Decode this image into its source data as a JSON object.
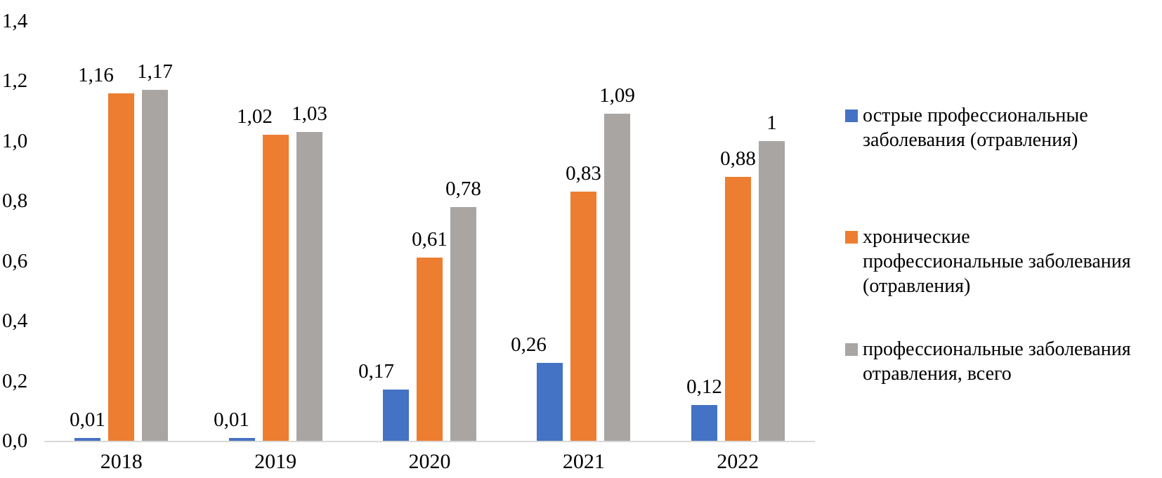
{
  "chart_data": {
    "type": "bar",
    "title": "",
    "xlabel": "",
    "ylabel": "",
    "categories": [
      "2018",
      "2019",
      "2020",
      "2021",
      "2022"
    ],
    "series": [
      {
        "name": "острые профессиональные заболевания (отравления)",
        "legend_lines": [
          "острые профессиональные",
          "заболевания (отравления)"
        ],
        "color": "#4472C4",
        "values": [
          0.01,
          0.01,
          0.17,
          0.26,
          0.12
        ],
        "value_labels": [
          "0,01",
          "0,01",
          "0,17",
          "0,26",
          "0,12"
        ]
      },
      {
        "name": "хронические профессиональные заболевания (отравления)",
        "legend_lines": [
          "хронические",
          "профессиональные заболевания",
          "(отравления)"
        ],
        "color": "#ED7D31",
        "values": [
          1.16,
          1.02,
          0.61,
          0.83,
          0.88
        ],
        "value_labels": [
          "1,16",
          "1,02",
          "0,61",
          "0,83",
          "0,88"
        ]
      },
      {
        "name": "профессиональные заболевания отравления, всего",
        "legend_lines": [
          "профессиональные заболевания",
          "отравления, всего"
        ],
        "color": "#A8A5A3",
        "values": [
          1.17,
          1.03,
          0.78,
          1.09,
          1
        ],
        "value_labels": [
          "1,17",
          "1,03",
          "0,78",
          "1,09",
          "1"
        ]
      }
    ],
    "ylim": [
      0,
      1.4
    ],
    "ytick_labels": [
      "0,0",
      "0,2",
      "0,4",
      "0,6",
      "0,8",
      "1,0",
      "1,2",
      "1,4"
    ],
    "grid": false,
    "legend_position": "right",
    "axis_line_color": "#D9D9D9",
    "text_color": "#000000",
    "background_color": "#FFFFFF"
  }
}
